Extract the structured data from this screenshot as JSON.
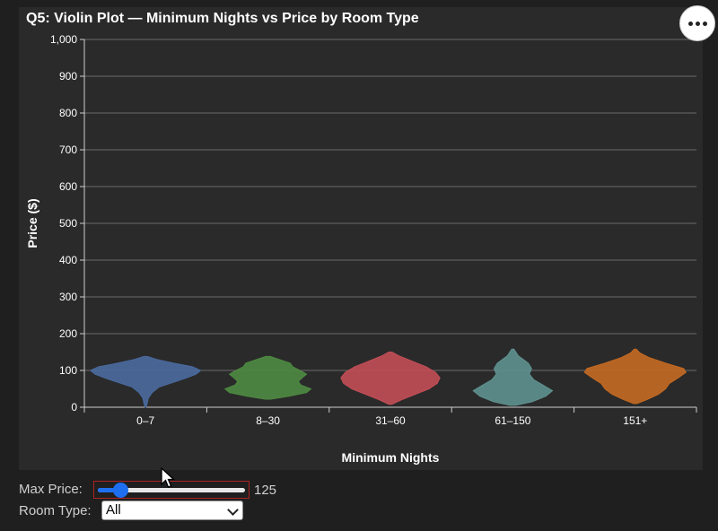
{
  "chart_data": {
    "type": "violin",
    "title": "Q5: Violin Plot — Minimum Nights vs Price by Room Type",
    "xlabel": "Minimum Nights",
    "ylabel": "Price ($)",
    "ylim": [
      0,
      1000
    ],
    "yticks": [
      0,
      100,
      200,
      300,
      400,
      500,
      600,
      700,
      800,
      900,
      1000
    ],
    "ytick_labels": [
      "0",
      "100",
      "200",
      "300",
      "400",
      "500",
      "600",
      "700",
      "800",
      "900",
      "1,000"
    ],
    "categories": [
      "0–7",
      "8–30",
      "31–60",
      "61–150",
      "151+"
    ],
    "grid": true,
    "violins": [
      {
        "category": "0–7",
        "color": "#4a6a9e",
        "profile": [
          [
            0,
            0.01
          ],
          [
            10,
            0.03
          ],
          [
            25,
            0.05
          ],
          [
            40,
            0.12
          ],
          [
            55,
            0.25
          ],
          [
            70,
            0.55
          ],
          [
            80,
            0.75
          ],
          [
            90,
            0.92
          ],
          [
            100,
            1.0
          ],
          [
            110,
            0.85
          ],
          [
            120,
            0.5
          ],
          [
            130,
            0.2
          ],
          [
            138,
            0.03
          ]
        ]
      },
      {
        "category": "8–30",
        "color": "#4e8a42",
        "profile": [
          [
            22,
            0.05
          ],
          [
            30,
            0.38
          ],
          [
            40,
            0.7
          ],
          [
            50,
            0.78
          ],
          [
            60,
            0.6
          ],
          [
            70,
            0.55
          ],
          [
            80,
            0.62
          ],
          [
            90,
            0.7
          ],
          [
            100,
            0.58
          ],
          [
            110,
            0.45
          ],
          [
            120,
            0.4
          ],
          [
            130,
            0.2
          ],
          [
            138,
            0.04
          ]
        ]
      },
      {
        "category": "31–60",
        "color": "#c24e56",
        "profile": [
          [
            8,
            0.03
          ],
          [
            20,
            0.2
          ],
          [
            35,
            0.45
          ],
          [
            50,
            0.7
          ],
          [
            65,
            0.85
          ],
          [
            80,
            0.9
          ],
          [
            95,
            0.82
          ],
          [
            110,
            0.65
          ],
          [
            125,
            0.4
          ],
          [
            140,
            0.15
          ],
          [
            150,
            0.03
          ]
        ]
      },
      {
        "category": "61–150",
        "color": "#5e918f",
        "profile": [
          [
            5,
            0.05
          ],
          [
            15,
            0.35
          ],
          [
            30,
            0.6
          ],
          [
            45,
            0.72
          ],
          [
            60,
            0.55
          ],
          [
            75,
            0.38
          ],
          [
            90,
            0.3
          ],
          [
            105,
            0.34
          ],
          [
            120,
            0.28
          ],
          [
            140,
            0.1
          ],
          [
            158,
            0.02
          ]
        ]
      },
      {
        "category": "151+",
        "color": "#c46a22",
        "profile": [
          [
            10,
            0.03
          ],
          [
            20,
            0.2
          ],
          [
            35,
            0.42
          ],
          [
            50,
            0.55
          ],
          [
            65,
            0.62
          ],
          [
            80,
            0.78
          ],
          [
            95,
            0.92
          ],
          [
            105,
            0.88
          ],
          [
            120,
            0.55
          ],
          [
            135,
            0.25
          ],
          [
            148,
            0.08
          ],
          [
            158,
            0.02
          ]
        ]
      }
    ]
  },
  "controls": {
    "max_price_label": "Max Price:",
    "max_price_value": "125",
    "max_price_fraction": 0.15,
    "room_type_label": "Room Type:",
    "room_type_selected": "All"
  },
  "menu": {
    "icon": "more-horizontal-icon"
  }
}
